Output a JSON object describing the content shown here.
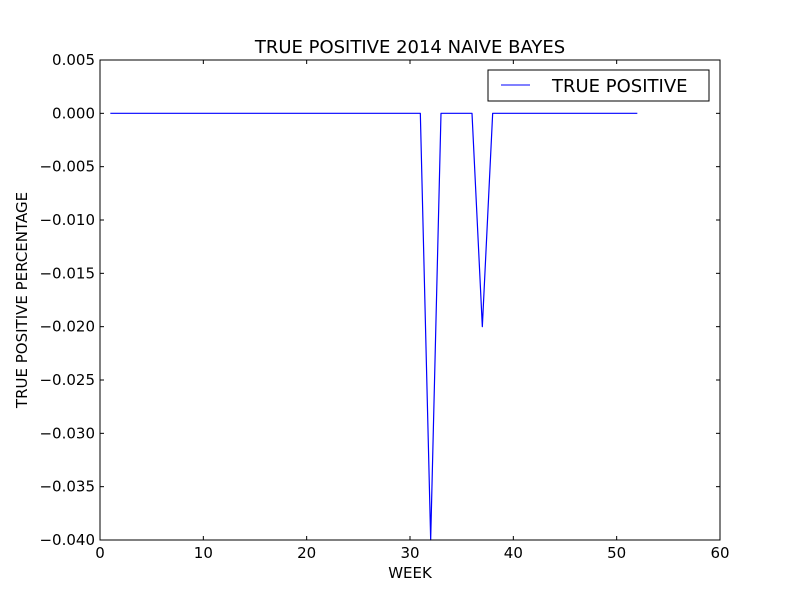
{
  "chart_data": {
    "type": "line",
    "title": "TRUE POSITIVE 2014 NAIVE BAYES",
    "xlabel": "WEEK",
    "ylabel": "TRUE POSITIVE PERCENTAGE",
    "xlim": [
      0,
      60
    ],
    "ylim": [
      -0.04,
      0.005
    ],
    "grid": false,
    "legend_position": "top-right",
    "x_ticks": [
      0,
      10,
      20,
      30,
      40,
      50,
      60
    ],
    "x_tick_labels": [
      "0",
      "10",
      "20",
      "30",
      "40",
      "50",
      "60"
    ],
    "y_ticks": [
      0.005,
      0.0,
      -0.005,
      -0.01,
      -0.015,
      -0.02,
      -0.025,
      -0.03,
      -0.035,
      -0.04
    ],
    "y_tick_labels": [
      "0.005",
      "0.000",
      "−0.005",
      "−0.010",
      "−0.015",
      "−0.020",
      "−0.025",
      "−0.030",
      "−0.035",
      "−0.040"
    ],
    "series": [
      {
        "name": "TRUE POSITIVE",
        "color": "#0000ff",
        "x": [
          1,
          2,
          3,
          4,
          5,
          6,
          7,
          8,
          9,
          10,
          11,
          12,
          13,
          14,
          15,
          16,
          17,
          18,
          19,
          20,
          21,
          22,
          23,
          24,
          25,
          26,
          27,
          28,
          29,
          30,
          31,
          32,
          33,
          34,
          35,
          36,
          37,
          38,
          39,
          40,
          41,
          42,
          43,
          44,
          45,
          46,
          47,
          48,
          49,
          50,
          51,
          52
        ],
        "y": [
          0,
          0,
          0,
          0,
          0,
          0,
          0,
          0,
          0,
          0,
          0,
          0,
          0,
          0,
          0,
          0,
          0,
          0,
          0,
          0,
          0,
          0,
          0,
          0,
          0,
          0,
          0,
          0,
          0,
          0,
          0,
          -0.04,
          0,
          0,
          0,
          0,
          -0.02,
          0,
          0,
          0,
          0,
          0,
          0,
          0,
          0,
          0,
          0,
          0,
          0,
          0,
          0,
          0
        ]
      }
    ]
  }
}
